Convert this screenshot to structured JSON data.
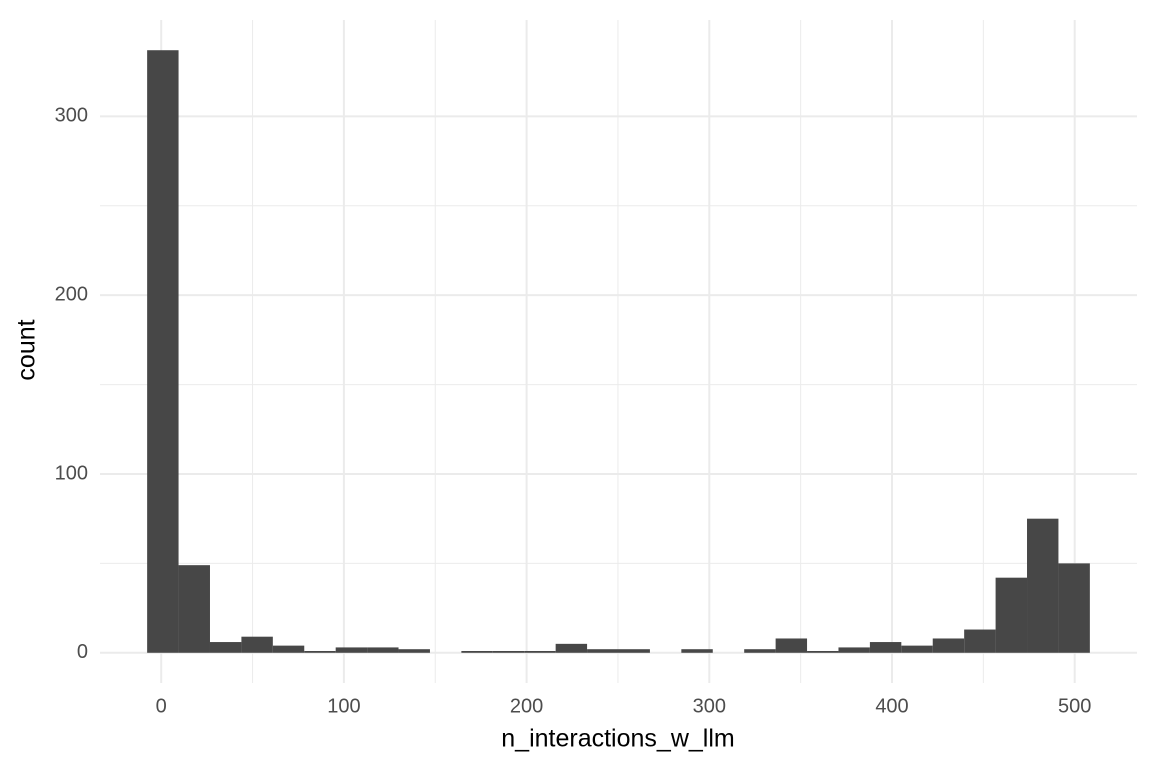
{
  "chart_data": {
    "type": "histogram",
    "x_label": "n_interactions_w_llm",
    "y_label": "count",
    "bins": [
      -7.7,
      9.5,
      26.7,
      43.9,
      61.1,
      78.3,
      95.5,
      112.7,
      129.9,
      147.1,
      164.3,
      181.5,
      198.7,
      215.9,
      233.1,
      250.3,
      267.5,
      284.7,
      301.9,
      319.1,
      336.3,
      353.5,
      370.7,
      387.9,
      405.1,
      422.3,
      439.5,
      456.7,
      473.9,
      491.1,
      508.3
    ],
    "values": [
      337,
      49,
      6,
      9,
      4,
      1,
      3,
      3,
      2,
      0,
      1,
      1,
      1,
      5,
      2,
      2,
      0,
      2,
      0,
      2,
      8,
      1,
      3,
      6,
      4,
      8,
      13,
      42,
      75,
      50
    ],
    "color": "#474747",
    "xlim": [
      -33.5,
      534.1
    ],
    "ylim": [
      -16.9,
      353.9
    ],
    "xticks": [
      0,
      100,
      200,
      300,
      400,
      500
    ],
    "yticks": [
      0,
      100,
      200,
      300
    ],
    "x_minor_ticks": [
      50,
      150,
      250,
      350,
      450
    ],
    "y_minor_ticks": [
      50,
      150,
      250
    ],
    "grid": true
  }
}
